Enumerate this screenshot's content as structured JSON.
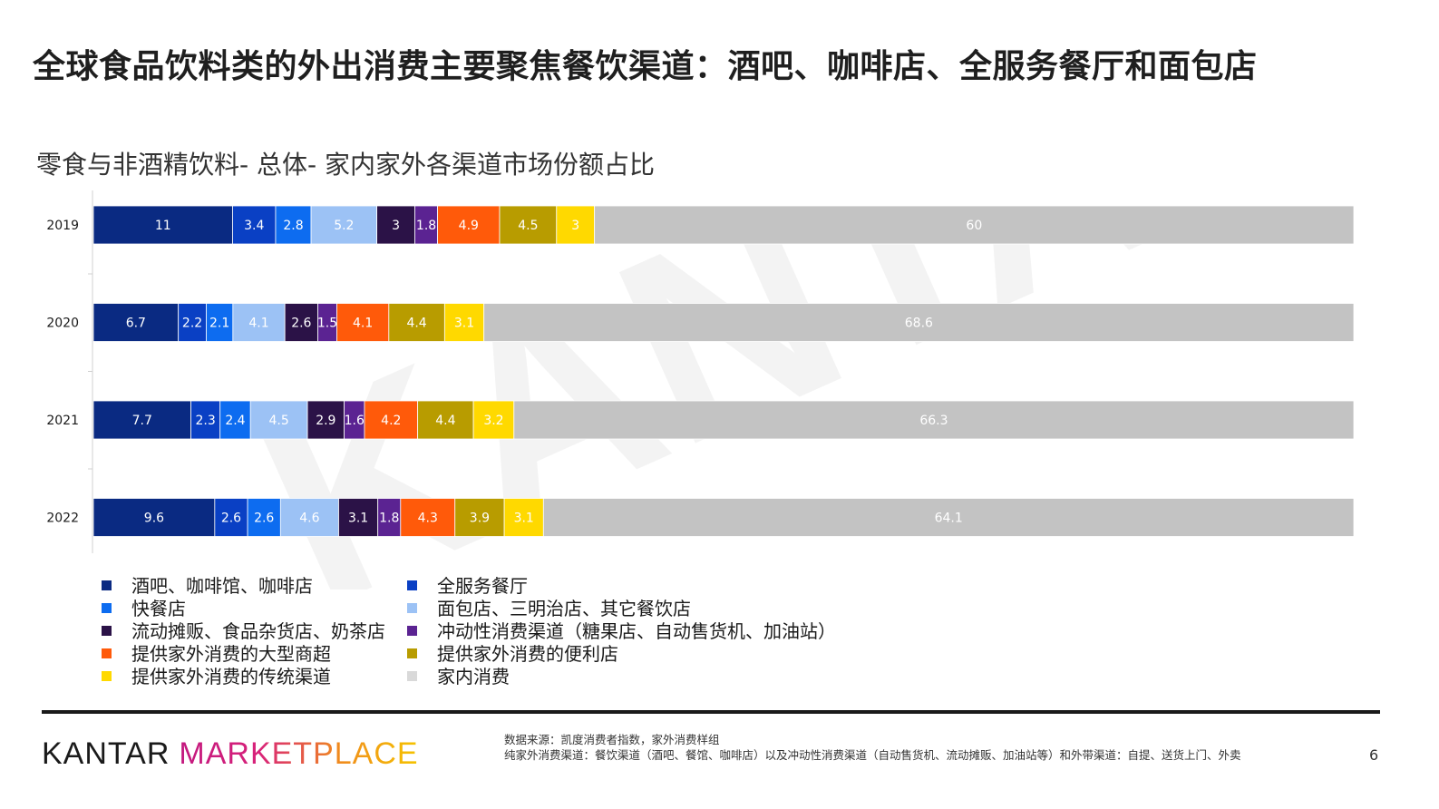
{
  "header": {
    "title": "全球食品饮料类的外出消费主要聚焦餐饮渠道：酒吧、咖啡店、全服务餐厅和面包店"
  },
  "watermark": "KANTAR",
  "chart_data": {
    "type": "bar",
    "orientation": "horizontal",
    "stacked": true,
    "title": "零食与非酒精饮料- 总体- 家内家外各渠道市场份额占比",
    "categories": [
      "2019",
      "2020",
      "2021",
      "2022"
    ],
    "series": [
      {
        "name": "酒吧、咖啡馆、咖啡店",
        "color": "#0a2a82",
        "values": [
          11,
          6.7,
          7.7,
          9.6
        ]
      },
      {
        "name": "全服务餐厅",
        "color": "#0a40c4",
        "values": [
          3.4,
          2.2,
          2.3,
          2.6
        ]
      },
      {
        "name": "快餐店",
        "color": "#0d6cf0",
        "values": [
          2.8,
          2.1,
          2.4,
          2.6
        ]
      },
      {
        "name": "面包店、三明治店、其它餐饮店",
        "color": "#9cc2f5",
        "values": [
          5.2,
          4.1,
          4.5,
          4.6
        ]
      },
      {
        "name": "流动摊贩、食品杂货店、奶茶店",
        "color": "#2b1247",
        "values": [
          3,
          2.6,
          2.9,
          3.1
        ]
      },
      {
        "name": "冲动性消费渠道（糖果店、自动售货机、加油站）",
        "color": "#5b2392",
        "values": [
          1.8,
          1.5,
          1.6,
          1.8
        ]
      },
      {
        "name": "提供家外消费的大型商超",
        "color": "#ff5a0a",
        "values": [
          4.9,
          4.1,
          4.2,
          4.3
        ]
      },
      {
        "name": "提供家外消费的便利店",
        "color": "#b89c00",
        "values": [
          4.5,
          4.4,
          4.4,
          3.9
        ]
      },
      {
        "name": "提供家外消费的传统渠道",
        "color": "#ffd900",
        "values": [
          3,
          3.1,
          3.2,
          3.1
        ]
      },
      {
        "name": "家内消费",
        "color": "#c3c3c3",
        "values": [
          60,
          68.6,
          66.3,
          64.1
        ]
      }
    ],
    "legend_position": "bottom",
    "grid": false
  },
  "legend": {
    "left": [
      {
        "label": "酒吧、咖啡馆、咖啡店",
        "color": "#0a2a82"
      },
      {
        "label": "快餐店",
        "color": "#0d6cf0"
      },
      {
        "label": "流动摊贩、食品杂货店、奶茶店",
        "color": "#2b1247"
      },
      {
        "label": "提供家外消费的大型商超",
        "color": "#ff5a0a"
      },
      {
        "label": "提供家外消费的传统渠道",
        "color": "#ffd900"
      }
    ],
    "right": [
      {
        "label": "全服务餐厅",
        "color": "#0a40c4"
      },
      {
        "label": "面包店、三明治店、其它餐饮店",
        "color": "#9cc2f5"
      },
      {
        "label": "冲动性消费渠道（糖果店、自动售货机、加油站）",
        "color": "#5b2392"
      },
      {
        "label": "提供家外消费的便利店",
        "color": "#b89c00"
      },
      {
        "label": "家内消费",
        "color": "#d9d9d9"
      }
    ]
  },
  "footer": {
    "logo_kantar": "KANTAR",
    "logo_marketplace": "MARKETPLACE",
    "source_line1": "数据来源：凯度消费者指数，家外消费样组",
    "source_line2": "纯家外消费渠道：餐饮渠道（酒吧、餐馆、咖啡店）以及冲动性消费渠道（自动售货机、流动摊贩、加油站等）和外带渠道：自提、送货上门、外卖",
    "page_number": "6"
  }
}
